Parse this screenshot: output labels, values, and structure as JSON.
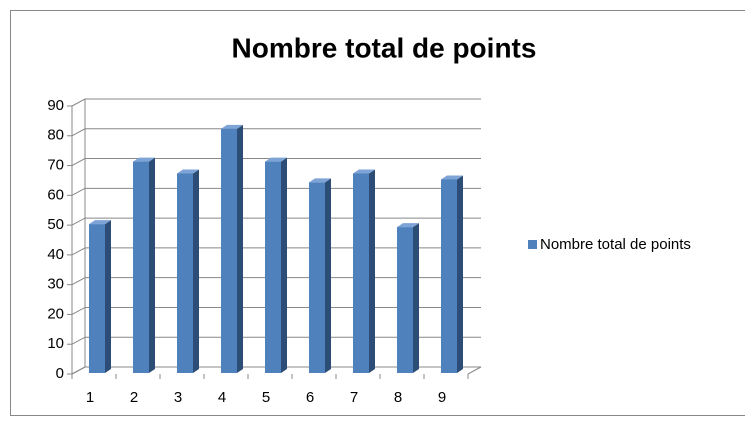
{
  "chart_data": {
    "type": "bar3d",
    "title": "Nombre total de points",
    "categories": [
      "1",
      "2",
      "3",
      "4",
      "5",
      "6",
      "7",
      "8",
      "9"
    ],
    "series": [
      {
        "name": "Nombre total de points",
        "color": "#4f81bd",
        "values": [
          50,
          71,
          67,
          82,
          71,
          64,
          67,
          49,
          65
        ]
      }
    ],
    "ylim": [
      0,
      90
    ],
    "yticks": [
      0,
      10,
      20,
      30,
      40,
      50,
      60,
      70,
      80,
      90
    ],
    "grid": true,
    "legend": "right"
  }
}
